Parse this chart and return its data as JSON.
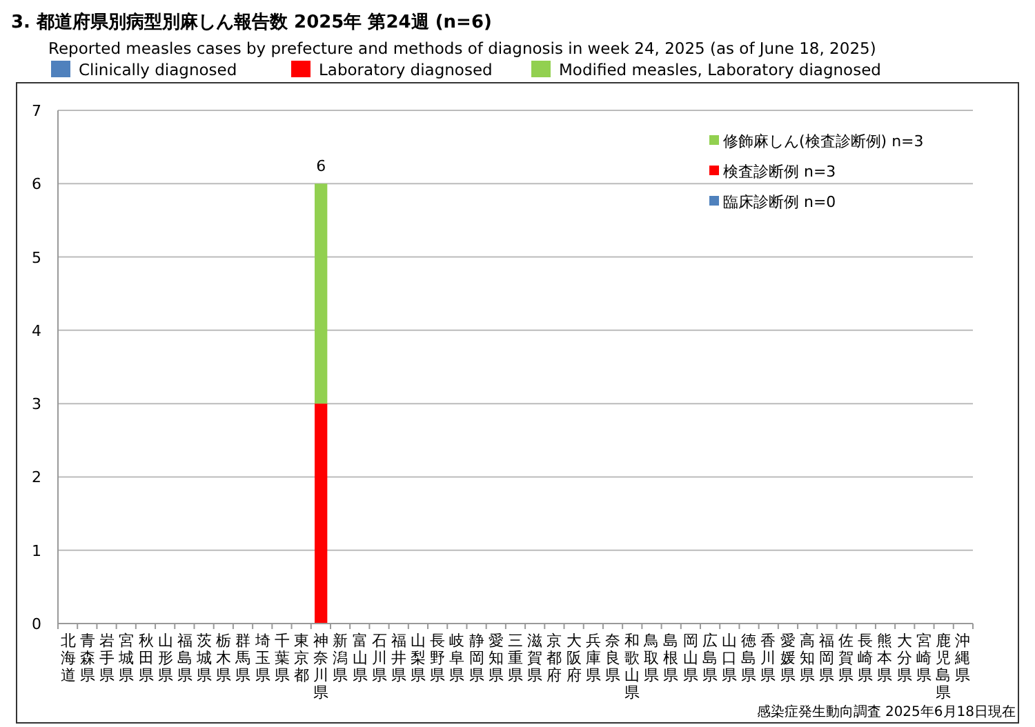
{
  "chart_data": {
    "type": "bar",
    "stacked": true,
    "title": "3. 都道府県別病型別麻しん報告数  2025年 第24週 (n=6)",
    "subtitle": "Reported measles cases by prefecture and methods of diagnosis in week 24, 2025 (as of June 18, 2025)",
    "categories": [
      "北海道",
      "青森県",
      "岩手県",
      "宮城県",
      "秋田県",
      "山形県",
      "福島県",
      "茨城県",
      "栃木県",
      "群馬県",
      "埼玉県",
      "千葉県",
      "東京都",
      "神奈川県",
      "新潟県",
      "富山県",
      "石川県",
      "福井県",
      "山梨県",
      "長野県",
      "岐阜県",
      "静岡県",
      "愛知県",
      "三重県",
      "滋賀県",
      "京都府",
      "大阪府",
      "兵庫県",
      "奈良県",
      "和歌山県",
      "鳥取県",
      "島根県",
      "岡山県",
      "広島県",
      "山口県",
      "徳島県",
      "香川県",
      "愛媛県",
      "高知県",
      "福岡県",
      "佐賀県",
      "長崎県",
      "熊本県",
      "大分県",
      "宮崎県",
      "鹿児島県",
      "沖縄県"
    ],
    "series": [
      {
        "name": "Clinically diagnosed",
        "color": "#4f81bd",
        "values": [
          0,
          0,
          0,
          0,
          0,
          0,
          0,
          0,
          0,
          0,
          0,
          0,
          0,
          0,
          0,
          0,
          0,
          0,
          0,
          0,
          0,
          0,
          0,
          0,
          0,
          0,
          0,
          0,
          0,
          0,
          0,
          0,
          0,
          0,
          0,
          0,
          0,
          0,
          0,
          0,
          0,
          0,
          0,
          0,
          0,
          0,
          0
        ]
      },
      {
        "name": "Laboratory diagnosed",
        "color": "#ff0000",
        "values": [
          0,
          0,
          0,
          0,
          0,
          0,
          0,
          0,
          0,
          0,
          0,
          0,
          0,
          3,
          0,
          0,
          0,
          0,
          0,
          0,
          0,
          0,
          0,
          0,
          0,
          0,
          0,
          0,
          0,
          0,
          0,
          0,
          0,
          0,
          0,
          0,
          0,
          0,
          0,
          0,
          0,
          0,
          0,
          0,
          0,
          0,
          0
        ]
      },
      {
        "name": "Modified measles, Laboratory diagnosed",
        "color": "#92d050",
        "values": [
          0,
          0,
          0,
          0,
          0,
          0,
          0,
          0,
          0,
          0,
          0,
          0,
          0,
          3,
          0,
          0,
          0,
          0,
          0,
          0,
          0,
          0,
          0,
          0,
          0,
          0,
          0,
          0,
          0,
          0,
          0,
          0,
          0,
          0,
          0,
          0,
          0,
          0,
          0,
          0,
          0,
          0,
          0,
          0,
          0,
          0,
          0
        ]
      }
    ],
    "totals": [
      null,
      null,
      null,
      null,
      null,
      null,
      null,
      null,
      null,
      null,
      null,
      null,
      null,
      "6",
      null,
      null,
      null,
      null,
      null,
      null,
      null,
      null,
      null,
      null,
      null,
      null,
      null,
      null,
      null,
      null,
      null,
      null,
      null,
      null,
      null,
      null,
      null,
      null,
      null,
      null,
      null,
      null,
      null,
      null,
      null,
      null,
      null
    ],
    "ylim": [
      0,
      7
    ],
    "yticks": [
      0,
      1,
      2,
      3,
      4,
      5,
      6,
      7
    ],
    "grid": "y",
    "legend": "top",
    "annotations": [
      "修飾麻しん(検査診断例) n=3",
      "検査診断例 n=3",
      "臨床診断例 n=0",
      "感染症発生動向調査 2025年6月18日現在"
    ]
  }
}
